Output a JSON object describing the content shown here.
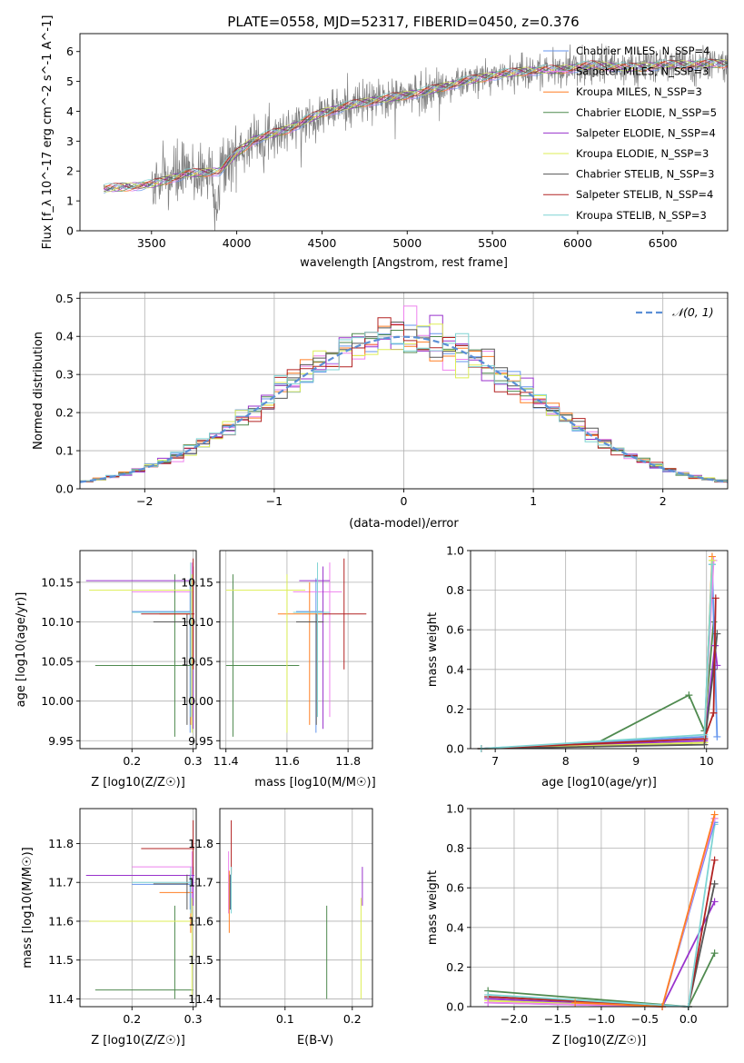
{
  "figure_title": "PLATE=0558, MJD=52317, FIBERID=0450, z=0.376",
  "colors": {
    "chabrier_miles": "#6495ED",
    "salpeter_miles": "#EE82EE",
    "kroupa_miles": "#FF7F24",
    "chabrier_elodie": "#4F8A4F",
    "salpeter_elodie": "#9932CC",
    "kroupa_elodie": "#DDEE55",
    "chabrier_stelib": "#555555",
    "salpeter_stelib": "#B22222",
    "kroupa_stelib": "#7FD4D4",
    "gauss": "#5B8FD6",
    "data": "#808080"
  },
  "chart_data": [
    {
      "id": "spectrum",
      "type": "line",
      "xlabel": "wavelength [Angstrom, rest frame]",
      "ylabel": "Flux [f_λ 10^-17 erg cm^-2 s^-1 A^-1]",
      "xlim": [
        3080,
        6880
      ],
      "ylim": [
        0,
        6.6
      ],
      "xticks": [
        3500,
        4000,
        4500,
        5000,
        5500,
        6000,
        6500
      ],
      "yticks": [
        0,
        1,
        2,
        3,
        4,
        5,
        6
      ],
      "legend_position": "right",
      "continuum": {
        "x": [
          3220,
          3500,
          3700,
          3900,
          4000,
          4100,
          4300,
          4500,
          4700,
          4900,
          5100,
          5300,
          5500,
          5700,
          5900,
          6100,
          6300,
          6500,
          6880
        ],
        "y": [
          1.4,
          1.55,
          1.9,
          2.0,
          2.6,
          3.05,
          3.4,
          3.95,
          4.25,
          4.45,
          4.65,
          4.95,
          5.2,
          5.35,
          5.4,
          5.55,
          5.45,
          5.55,
          5.6
        ]
      },
      "series": [
        {
          "name": "Chabrier MILES, N_SSP=4",
          "key": "chabrier_miles"
        },
        {
          "name": "Salpeter MILES, N_SSP=3",
          "key": "salpeter_miles"
        },
        {
          "name": "Kroupa MILES, N_SSP=3",
          "key": "kroupa_miles"
        },
        {
          "name": "Chabrier ELODIE, N_SSP=5",
          "key": "chabrier_elodie"
        },
        {
          "name": "Salpeter ELODIE, N_SSP=4",
          "key": "salpeter_elodie"
        },
        {
          "name": "Kroupa ELODIE, N_SSP=3",
          "key": "kroupa_elodie"
        },
        {
          "name": "Chabrier STELIB, N_SSP=3",
          "key": "chabrier_stelib"
        },
        {
          "name": "Salpeter STELIB, N_SSP=4",
          "key": "salpeter_stelib"
        },
        {
          "name": "Kroupa STELIB, N_SSP=3",
          "key": "kroupa_stelib"
        }
      ]
    },
    {
      "id": "residuals",
      "type": "line",
      "xlabel": "(data-model)/error",
      "ylabel": "Normed distribution",
      "xlim": [
        -2.5,
        2.5
      ],
      "ylim": [
        0,
        0.515
      ],
      "xticks": [
        -2,
        -1,
        0,
        1,
        2
      ],
      "yticks": [
        0.0,
        0.1,
        0.2,
        0.3,
        0.4,
        0.5
      ],
      "grid": true,
      "legend_position": "top-right",
      "gauss_label": "𝒩(0, 1)",
      "bin_width": 0.1
    },
    {
      "id": "age_vs_Z",
      "type": "scatter",
      "xlabel": "Z [log10(Z/Z☉)]",
      "ylabel": "age [log10(age/yr)]",
      "xlim": [
        0.115,
        0.305
      ],
      "ylim": [
        9.94,
        10.19
      ],
      "xticks": [
        0.2,
        0.3
      ],
      "yticks": [
        9.95,
        10.0,
        10.05,
        10.1,
        10.15
      ],
      "grid": true
    },
    {
      "id": "age_vs_mass",
      "type": "scatter",
      "xlabel": "mass [log10(M/M☉)]",
      "ylabel": "",
      "xlim": [
        11.38,
        11.88
      ],
      "ylim": [
        9.94,
        10.19
      ],
      "xticks": [
        11.4,
        11.6,
        11.8
      ],
      "yticks": [
        9.95,
        10.0,
        10.05,
        10.1,
        10.15
      ],
      "grid": true
    },
    {
      "id": "weight_vs_age",
      "type": "line",
      "xlabel": "age [log10(age/yr)]",
      "ylabel": "mass weight",
      "xlim": [
        6.65,
        10.3
      ],
      "ylim": [
        0,
        1.0
      ],
      "xticks": [
        7,
        8,
        9,
        10
      ],
      "yticks": [
        0.0,
        0.2,
        0.4,
        0.6,
        0.8,
        1.0
      ],
      "grid": true,
      "series": [
        {
          "key": "chabrier_elodie",
          "x": [
            6.8,
            8.4,
            9.75,
            9.97,
            10.1
          ],
          "y": [
            0.0,
            0.02,
            0.27,
            0.09,
            0.64
          ]
        },
        {
          "key": "chabrier_miles",
          "x": [
            6.8,
            9.97,
            10.08,
            10.15
          ],
          "y": [
            0.0,
            0.06,
            0.93,
            0.06
          ]
        },
        {
          "key": "salpeter_miles",
          "x": [
            6.8,
            9.97,
            10.1
          ],
          "y": [
            0.0,
            0.05,
            0.95
          ]
        },
        {
          "key": "kroupa_miles",
          "x": [
            6.8,
            9.97,
            10.08
          ],
          "y": [
            0.0,
            0.03,
            0.97
          ]
        },
        {
          "key": "salpeter_elodie",
          "x": [
            6.8,
            9.97,
            10.12,
            10.15
          ],
          "y": [
            0.0,
            0.04,
            0.52,
            0.42
          ]
        },
        {
          "key": "kroupa_elodie",
          "x": [
            6.8,
            9.97,
            10.08
          ],
          "y": [
            0.0,
            0.03,
            0.95
          ]
        },
        {
          "key": "chabrier_stelib",
          "x": [
            6.8,
            9.97,
            10.1,
            10.15
          ],
          "y": [
            0.0,
            0.02,
            0.4,
            0.58
          ]
        },
        {
          "key": "salpeter_stelib",
          "x": [
            6.8,
            9.97,
            10.1,
            10.13
          ],
          "y": [
            0.0,
            0.05,
            0.18,
            0.76
          ]
        },
        {
          "key": "kroupa_stelib",
          "x": [
            6.8,
            9.97,
            10.08
          ],
          "y": [
            0.0,
            0.07,
            0.93
          ]
        }
      ]
    },
    {
      "id": "mass_vs_Z",
      "type": "scatter",
      "xlabel": "Z [log10(Z/Z☉)]",
      "ylabel": "mass [log10(M/M☉)]",
      "xlim": [
        0.115,
        0.305
      ],
      "ylim": [
        11.38,
        11.89
      ],
      "xticks": [
        0.2,
        0.3
      ],
      "yticks": [
        11.4,
        11.5,
        11.6,
        11.7,
        11.8
      ],
      "grid": true
    },
    {
      "id": "mass_vs_ebv",
      "type": "scatter",
      "xlabel": "E(B-V)",
      "ylabel": "",
      "xlim": [
        0.003,
        0.23
      ],
      "ylim": [
        11.38,
        11.89
      ],
      "xticks": [
        0.1,
        0.2
      ],
      "yticks": [
        11.4,
        11.5,
        11.6,
        11.7,
        11.8
      ],
      "grid": true
    },
    {
      "id": "weight_vs_Z",
      "type": "line",
      "xlabel": "Z [log10(Z/Z☉)]",
      "ylabel": "mass weight",
      "xlim": [
        -2.5,
        0.45
      ],
      "ylim": [
        0,
        1.0
      ],
      "xticks": [
        -2.0,
        -1.5,
        -1.0,
        -0.5,
        0.0
      ],
      "yticks": [
        0.0,
        0.2,
        0.4,
        0.6,
        0.8,
        1.0
      ],
      "grid": true,
      "series": [
        {
          "key": "chabrier_elodie",
          "x": [
            -2.3,
            0.0,
            0.3
          ],
          "y": [
            0.08,
            0.0,
            0.27
          ]
        },
        {
          "key": "salpeter_elodie",
          "x": [
            -2.3,
            -0.3,
            0.3
          ],
          "y": [
            0.04,
            0.0,
            0.53
          ]
        },
        {
          "key": "kroupa_elodie",
          "x": [
            -2.3,
            -0.3,
            0.3
          ],
          "y": [
            0.03,
            0.0,
            0.95
          ]
        },
        {
          "key": "chabrier_stelib",
          "x": [
            -2.3,
            0.0,
            0.3
          ],
          "y": [
            0.05,
            0.0,
            0.62
          ]
        },
        {
          "key": "salpeter_stelib",
          "x": [
            -2.3,
            0.0,
            0.3
          ],
          "y": [
            0.05,
            0.0,
            0.74
          ]
        },
        {
          "key": "kroupa_stelib",
          "x": [
            -2.3,
            0.0,
            0.3
          ],
          "y": [
            0.06,
            0.0,
            0.92
          ]
        },
        {
          "key": "chabrier_miles",
          "x": [
            -2.3,
            -0.3,
            0.3
          ],
          "y": [
            0.02,
            0.0,
            0.93
          ]
        },
        {
          "key": "salpeter_miles",
          "x": [
            -2.3,
            -0.3,
            0.3
          ],
          "y": [
            0.02,
            0.0,
            0.95
          ]
        },
        {
          "key": "kroupa_miles",
          "x": [
            -1.3,
            -0.3,
            0.3
          ],
          "y": [
            0.02,
            0.0,
            0.97
          ]
        }
      ]
    }
  ],
  "error_points": [
    {
      "key": "chabrier_miles",
      "Z": 0.295,
      "Zlo": 0.2,
      "Zhi": 0.298,
      "age": 10.113,
      "age_lo": 9.96,
      "age_hi": 10.155,
      "mass": 11.695,
      "mass_lo": 11.63,
      "mass_hi": 11.72,
      "ebv": 0.018
    },
    {
      "key": "salpeter_miles",
      "Z": 0.298,
      "Zlo": 0.2,
      "Zhi": 0.3,
      "age": 10.138,
      "age_lo": 9.98,
      "age_hi": 10.175,
      "mass": 11.74,
      "mass_lo": 11.62,
      "mass_hi": 11.78,
      "ebv": 0.016
    },
    {
      "key": "kroupa_miles",
      "Z": 0.296,
      "Zlo": 0.245,
      "Zhi": 0.3,
      "age": 10.11,
      "age_lo": 9.97,
      "age_hi": 10.15,
      "mass": 11.674,
      "mass_lo": 11.57,
      "mass_hi": 11.73,
      "ebv": 0.017
    },
    {
      "key": "chabrier_elodie",
      "Z": 0.27,
      "Zlo": 0.14,
      "Zhi": 0.3,
      "age": 10.045,
      "age_lo": 9.955,
      "age_hi": 10.16,
      "mass": 11.423,
      "mass_lo": 11.4,
      "mass_hi": 11.64,
      "ebv": 0.162
    },
    {
      "key": "salpeter_elodie",
      "Z": 0.3,
      "Zlo": 0.125,
      "Zhi": 0.302,
      "age": 10.152,
      "age_lo": 9.965,
      "age_hi": 10.17,
      "mass": 11.718,
      "mass_lo": 11.64,
      "mass_hi": 11.74,
      "ebv": 0.215
    },
    {
      "key": "kroupa_elodie",
      "Z": 0.298,
      "Zlo": 0.13,
      "Zhi": 0.3,
      "age": 10.14,
      "age_lo": 9.96,
      "age_hi": 10.16,
      "mass": 11.6,
      "mass_lo": 11.4,
      "mass_hi": 11.66,
      "ebv": 0.213
    },
    {
      "key": "chabrier_stelib",
      "Z": 0.29,
      "Zlo": 0.235,
      "Zhi": 0.292,
      "age": 10.1,
      "age_lo": 9.97,
      "age_hi": 10.11,
      "mass": 11.696,
      "mass_lo": 11.63,
      "mass_hi": 11.72,
      "ebv": 0.019
    },
    {
      "key": "salpeter_stelib",
      "Z": 0.3,
      "Zlo": 0.215,
      "Zhi": 0.302,
      "age": 10.11,
      "age_lo": 10.04,
      "age_hi": 10.18,
      "mass": 11.787,
      "mass_lo": 11.72,
      "mass_hi": 11.86,
      "ebv": 0.02
    },
    {
      "key": "kroupa_stelib",
      "Z": 0.296,
      "Zlo": 0.2,
      "Zhi": 0.298,
      "age": 10.112,
      "age_lo": 9.98,
      "age_hi": 10.175,
      "mass": 11.7,
      "mass_lo": 11.62,
      "mass_hi": 11.74,
      "ebv": 0.02
    }
  ]
}
